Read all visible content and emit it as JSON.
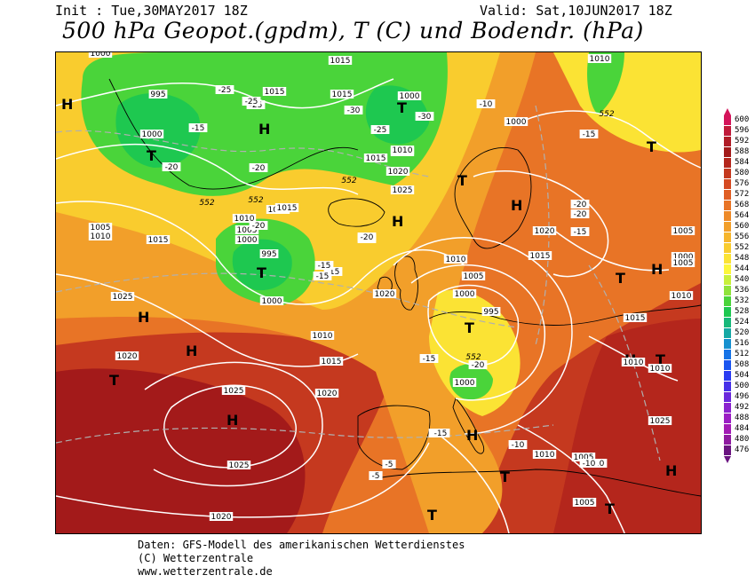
{
  "header": {
    "init": "Init : Tue,30MAY2017 18Z",
    "valid": "Valid: Sat,10JUN2017 18Z",
    "title": "500 hPa Geopot.(gpdm), T (C) und Bodendr. (hPa)"
  },
  "footer": {
    "line1": "Daten: GFS-Modell des amerikanischen Wetterdienstes",
    "line2": "(C) Wetterzentrale",
    "line3": "www.wetterzentrale.de"
  },
  "legend": {
    "levels": [
      "600",
      "596",
      "592",
      "588",
      "584",
      "580",
      "576",
      "572",
      "568",
      "564",
      "560",
      "556",
      "552",
      "548",
      "544",
      "540",
      "536",
      "532",
      "528",
      "524",
      "520",
      "516",
      "512",
      "508",
      "504",
      "500",
      "496",
      "492",
      "488",
      "484",
      "480",
      "476"
    ],
    "colors": [
      "#d4145a",
      "#c01a3a",
      "#b01c26",
      "#a31a1a",
      "#b4261c",
      "#c5391f",
      "#d54a22",
      "#e05e24",
      "#e87426",
      "#ee8a28",
      "#f29f2a",
      "#f6b52c",
      "#f9cc2e",
      "#fbe334",
      "#fcf73a",
      "#c8f03a",
      "#8fe33a",
      "#4ad43a",
      "#1ec850",
      "#17b87a",
      "#16a8a4",
      "#1690cf",
      "#1673e6",
      "#1a55f0",
      "#2a3cf2",
      "#4630e8",
      "#6a28dc",
      "#8a22cf",
      "#9b1ec4",
      "#a21bb5",
      "#8e1aa0",
      "#6a1480"
    ]
  },
  "map_labels": {
    "pressure": [
      "1000",
      "995",
      "1000",
      "1015",
      "1015",
      "1015",
      "1000",
      "1005",
      "1010",
      "1015",
      "1020",
      "1025",
      "1025",
      "1015",
      "1010",
      "1005",
      "1000",
      "995",
      "1000",
      "1005",
      "1010",
      "1015",
      "1020",
      "1010",
      "1005",
      "1000",
      "995",
      "1025",
      "1020",
      "1020",
      "1010",
      "1015",
      "1025",
      "1025",
      "1020",
      "1020",
      "1015",
      "1010",
      "1005",
      "1000",
      "1005",
      "1010",
      "1015",
      "1010",
      "1000",
      "1005",
      "1010",
      "1025",
      "1005",
      "1010",
      "1000"
    ],
    "temperature": [
      "-25",
      "-25",
      "-25",
      "-20",
      "-20",
      "-25",
      "-30",
      "-30",
      "-15",
      "-20",
      "-20",
      "-15",
      "-20",
      "-15",
      "-15",
      "-10",
      "-15",
      "-15",
      "-20",
      "-20",
      "-15",
      "-10",
      "-10",
      "-5",
      "-5",
      "-10",
      "-15",
      "-15",
      "-20"
    ],
    "geopotential": [
      "552",
      "552",
      "552",
      "552",
      "552"
    ],
    "high_symbol": "H",
    "low_symbol": "T"
  }
}
